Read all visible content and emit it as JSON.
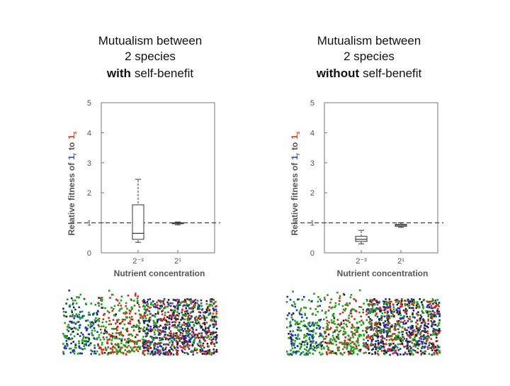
{
  "chart_data": [
    {
      "type": "box",
      "title_lines": [
        "Mutualism between",
        "2 species"
      ],
      "title_emphasis": "with",
      "title_rest": "self-benefit",
      "y_label": {
        "lead": "Relative fitness of",
        "first": "1",
        "first_sub": "r",
        "join": "to",
        "second": "1",
        "second_sub": "s",
        "first_color": "#3a55d8",
        "second_color": "#e0452e"
      },
      "x_label": "Nutrient concentration",
      "categories": [
        "2⁻³",
        "2¹"
      ],
      "boxes": [
        {
          "low": 0.35,
          "q1": 0.45,
          "median": 0.65,
          "q3": 1.6,
          "high": 2.45
        },
        {
          "low": 0.93,
          "q1": 0.97,
          "median": 0.98,
          "q3": 1.0,
          "high": 1.03
        }
      ],
      "reference_line": 1,
      "ylim": [
        0,
        5
      ],
      "yticks": [
        0,
        1,
        2,
        3,
        4,
        5
      ]
    },
    {
      "type": "box",
      "title_lines": [
        "Mutualism between",
        "2 species"
      ],
      "title_emphasis": "without",
      "title_rest": "self-benefit",
      "y_label": {
        "lead": "Relative fitness of",
        "first": "1",
        "first_sub": "r",
        "join": "to",
        "second": "1",
        "second_sub": "s",
        "first_color": "#3a55d8",
        "second_color": "#e0452e"
      },
      "x_label": "Nutrient concentration",
      "categories": [
        "2⁻³",
        "2¹"
      ],
      "boxes": [
        {
          "low": 0.3,
          "q1": 0.38,
          "median": 0.45,
          "q3": 0.55,
          "high": 0.75
        },
        {
          "low": 0.85,
          "q1": 0.88,
          "median": 0.92,
          "q3": 0.95,
          "high": 1.0
        }
      ],
      "reference_line": 1,
      "ylim": [
        0,
        5
      ],
      "yticks": [
        0,
        1,
        2,
        3,
        4,
        5
      ]
    }
  ]
}
